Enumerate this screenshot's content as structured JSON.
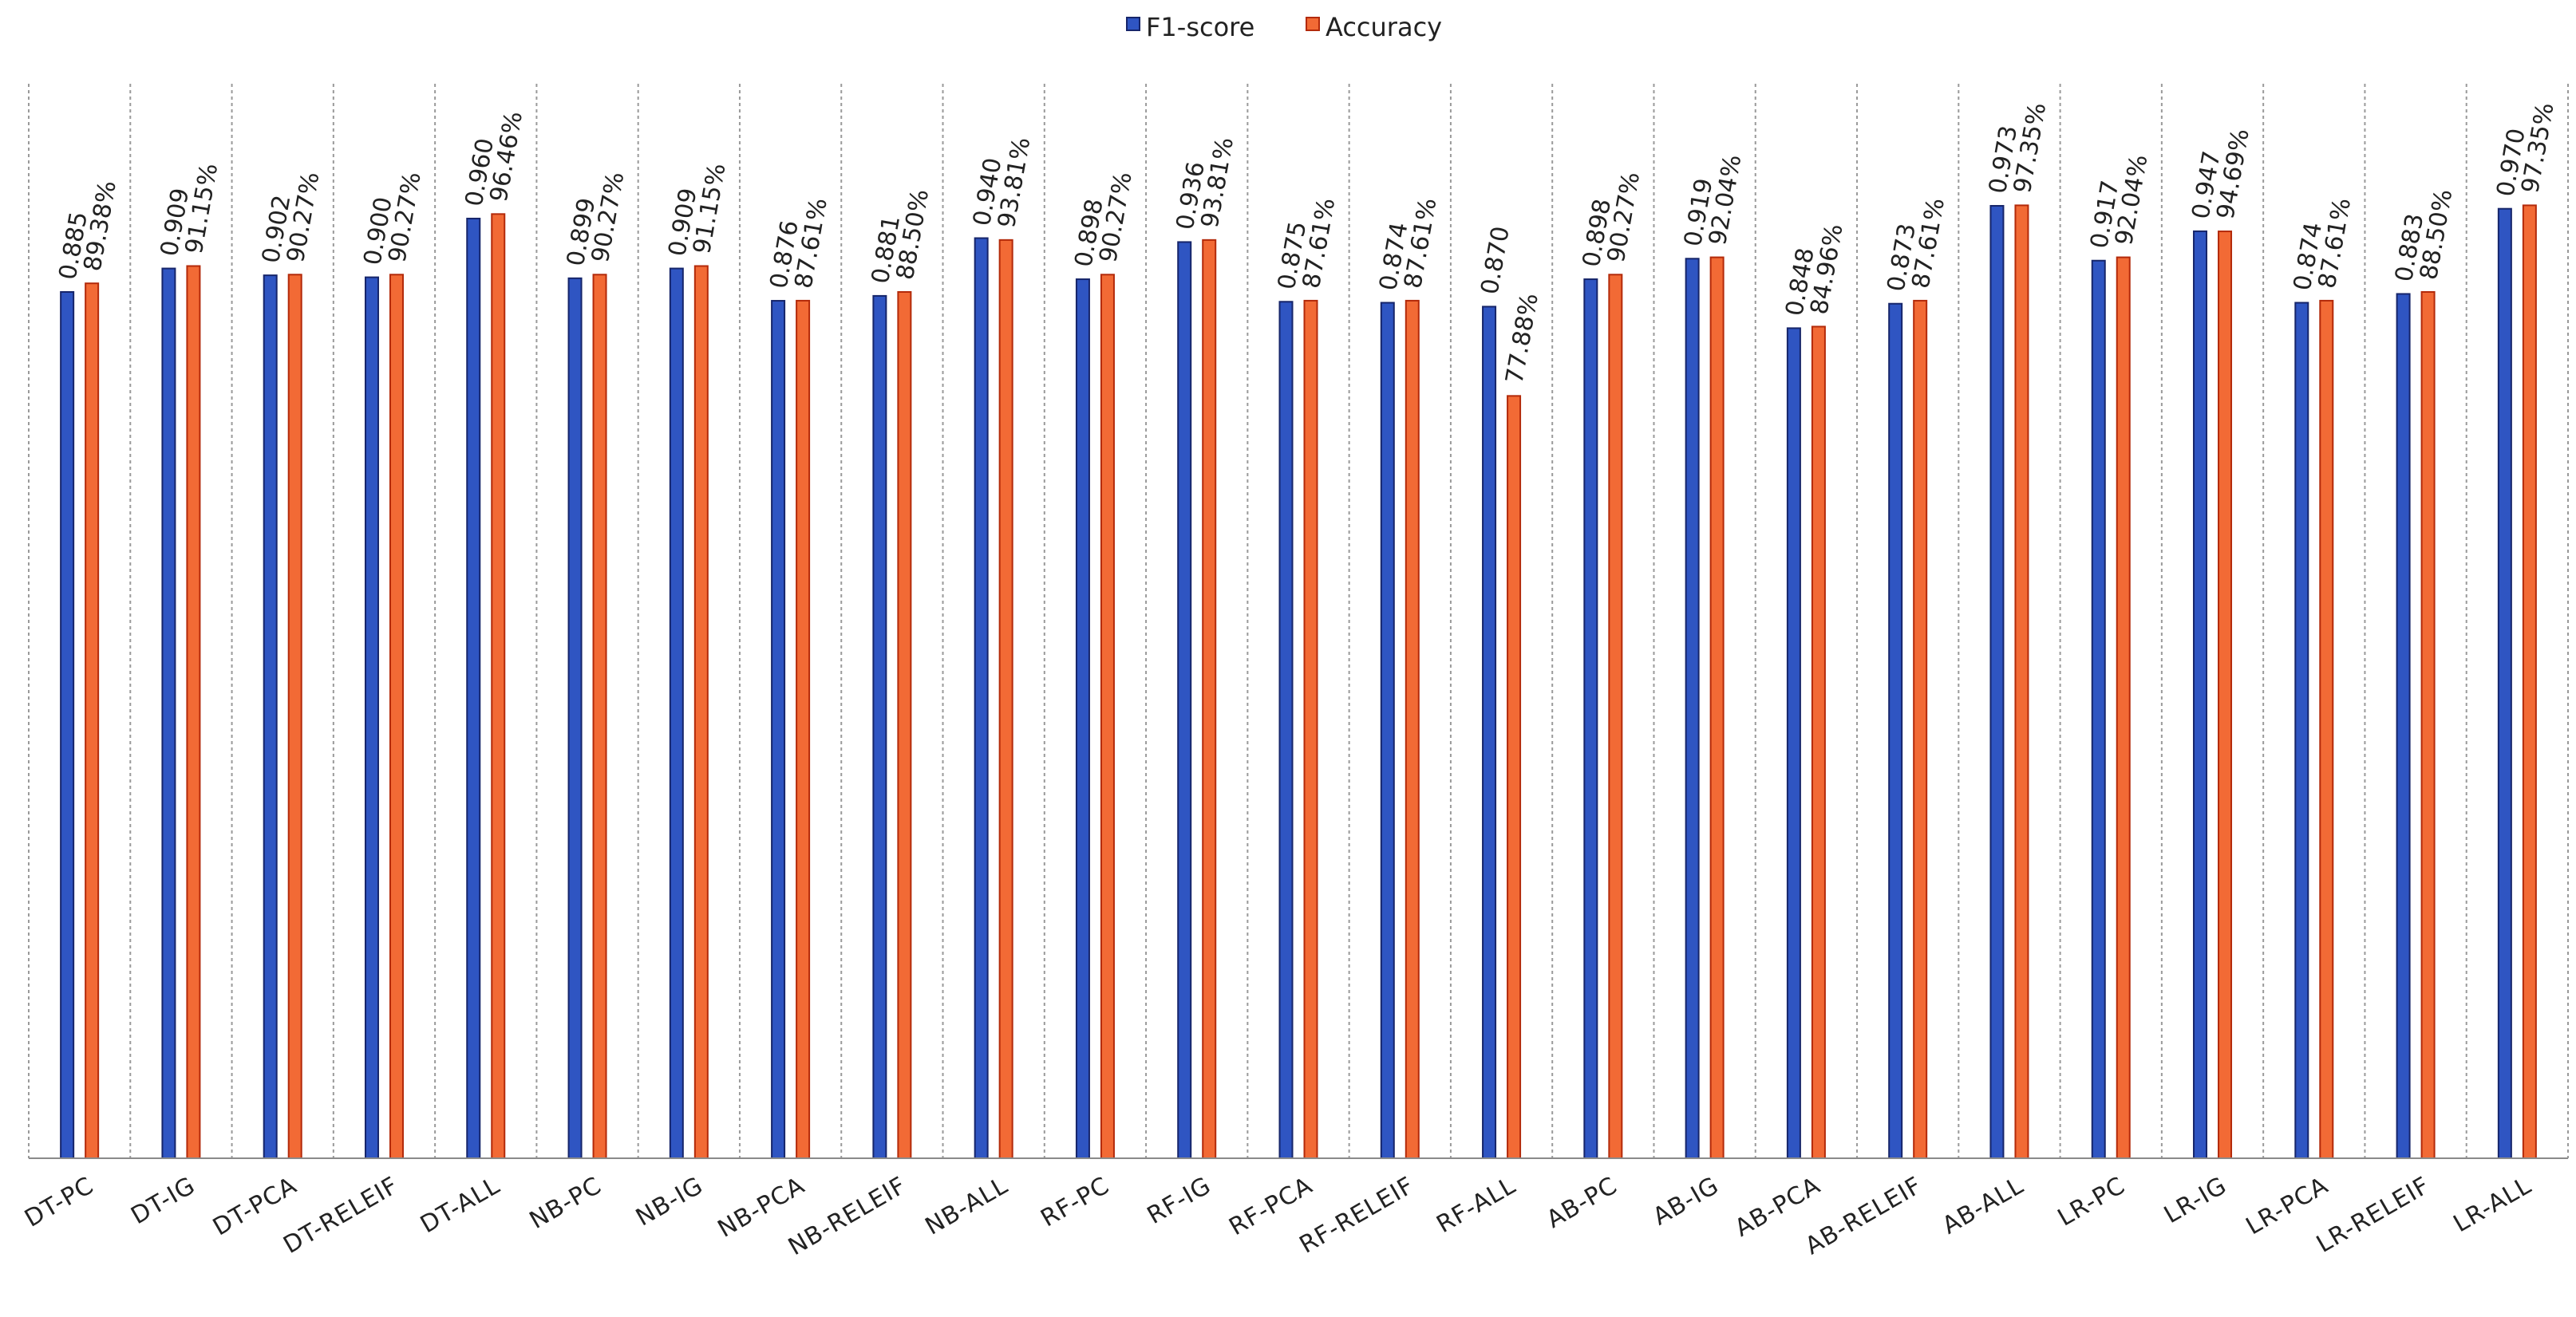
{
  "chart_data": {
    "type": "bar",
    "title": "",
    "xlabel": "",
    "ylabel": "",
    "ylim": [
      0,
      1.05
    ],
    "grid": "vertical-separators",
    "legend_position": "top-center",
    "categories": [
      "DT-PC",
      "DT-IG",
      "DT-PCA",
      "DT-RELEIF",
      "DT-ALL",
      "NB-PC",
      "NB-IG",
      "NB-PCA",
      "NB-RELEIF",
      "NB-ALL",
      "RF-PC",
      "RF-IG",
      "RF-PCA",
      "RF-RELEIF",
      "RF-ALL",
      "AB-PC",
      "AB-IG",
      "AB-PCA",
      "AB-RELEIF",
      "AB-ALL",
      "LR-PC",
      "LR-IG",
      "LR-PCA",
      "LR-RELEIF",
      "LR-ALL"
    ],
    "series": [
      {
        "name": "F1-score",
        "color": "#2f55c2",
        "border": "#16256a",
        "values": [
          0.885,
          0.909,
          0.902,
          0.9,
          0.96,
          0.899,
          0.909,
          0.876,
          0.881,
          0.94,
          0.898,
          0.936,
          0.875,
          0.874,
          0.87,
          0.898,
          0.919,
          0.848,
          0.873,
          0.973,
          0.917,
          0.947,
          0.874,
          0.883,
          0.97
        ],
        "labels": [
          "0.885",
          "0.909",
          "0.902",
          "0.900",
          "0.960",
          "0.899",
          "0.909",
          "0.876",
          "0.881",
          "0.940",
          "0.898",
          "0.936",
          "0.875",
          "0.874",
          "0.870",
          "0.898",
          "0.919",
          "0.848",
          "0.873",
          "0.973",
          "0.917",
          "0.947",
          "0.874",
          "0.883",
          "0.970"
        ]
      },
      {
        "name": "Accuracy",
        "color": "#f26a35",
        "border": "#b32a0a",
        "values": [
          0.8938,
          0.9115,
          0.9027,
          0.9027,
          0.9646,
          0.9027,
          0.9115,
          0.8761,
          0.885,
          0.9381,
          0.9027,
          0.9381,
          0.8761,
          0.8761,
          0.7788,
          0.9027,
          0.9204,
          0.8496,
          0.8761,
          0.9735,
          0.9204,
          0.9469,
          0.8761,
          0.885,
          0.9735
        ],
        "labels": [
          "89.38%",
          "91.15%",
          "90.27%",
          "90.27%",
          "96.46%",
          "90.27%",
          "91.15%",
          "87.61%",
          "88.50%",
          "93.81%",
          "90.27%",
          "93.81%",
          "87.61%",
          "87.61%",
          "77.88%",
          "90.27%",
          "92.04%",
          "84.96%",
          "87.61%",
          "97.35%",
          "92.04%",
          "94.69%",
          "87.61%",
          "88.50%",
          "97.35%"
        ]
      }
    ]
  }
}
